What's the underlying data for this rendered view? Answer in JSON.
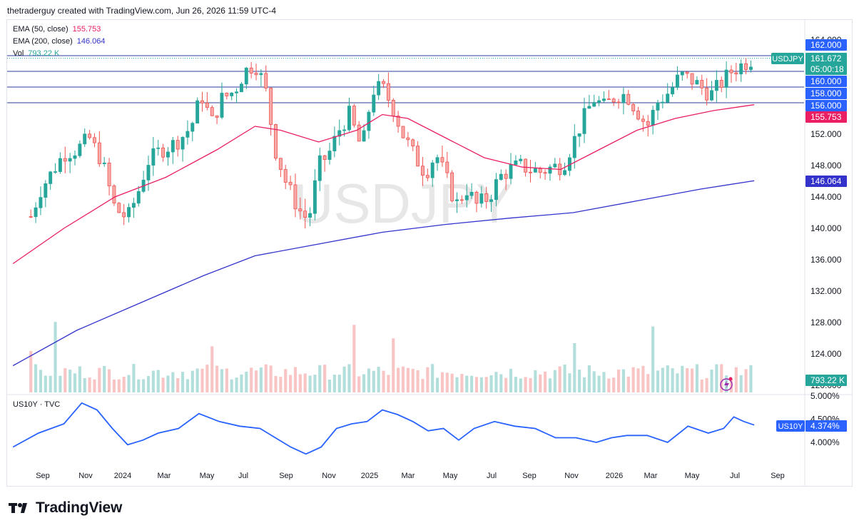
{
  "header": {
    "caption": "thetraderguy created with TradingView.com, Jun 26, 2026 11:59 UTC-4"
  },
  "legend": {
    "ema50": {
      "label": "EMA (50, close)",
      "value": "155.753",
      "color": "#e91e63"
    },
    "ema200": {
      "label": "EMA (200, close)",
      "value": "146.064",
      "color": "#3333cc"
    },
    "vol": {
      "label": "Vol",
      "value": "793.22 K",
      "color": "#26a69a"
    }
  },
  "watermark": "USDJPY",
  "colors": {
    "up": "#26a69a",
    "down": "#ef5350",
    "up_vol": "#b2dfdb",
    "down_vol": "#f8c4c4",
    "ema50": "#e91e63",
    "ema200": "#3333cc",
    "us10y": "#2962ff",
    "hline": "#2a3f9e"
  },
  "price_axis": {
    "ticks": [
      "164.000",
      "152.000",
      "148.000",
      "144.000",
      "140.000",
      "136.000",
      "132.000",
      "128.000",
      "124.000",
      "120.000"
    ]
  },
  "price_labels": [
    {
      "text": "162.000",
      "bg": "#2962ff",
      "fg": "#ffffff"
    },
    {
      "text": "161.672",
      "bg": "#26a69a",
      "fg": "#ffffff"
    },
    {
      "text": "05:00:18",
      "bg": "#26a69a",
      "fg": "#ffffff"
    },
    {
      "text": "160.000",
      "bg": "#2962ff",
      "fg": "#ffffff"
    },
    {
      "text": "158.000",
      "bg": "#2962ff",
      "fg": "#ffffff"
    },
    {
      "text": "156.000",
      "bg": "#2962ff",
      "fg": "#ffffff"
    },
    {
      "text": "155.753",
      "bg": "#e91e63",
      "fg": "#ffffff"
    },
    {
      "text": "146.064",
      "bg": "#3333cc",
      "fg": "#ffffff"
    }
  ],
  "symbol_tag": "USDJPY",
  "vol_label": "793.22 K",
  "sub_pane": {
    "title": "US10Y · TVC",
    "axis": [
      "5.000%",
      "4.500%",
      "4.000%"
    ],
    "tag_name": "US10Y",
    "tag_value": "4.374%"
  },
  "time_axis": [
    "Sep",
    "Nov",
    "2024",
    "Mar",
    "May",
    "Jul",
    "Sep",
    "Nov",
    "2025",
    "Mar",
    "May",
    "Jul",
    "Sep",
    "Nov",
    "2026",
    "Mar",
    "May",
    "Jul",
    "Sep"
  ],
  "footer": {
    "brand": "TradingView"
  },
  "chart_data": {
    "type": "candlestick",
    "symbol": "USDJPY",
    "interval": "weekly",
    "x_range": [
      "2023-07",
      "2026-09"
    ],
    "ylim": [
      120,
      165
    ],
    "horizontal_levels": [
      162,
      160,
      158,
      156
    ],
    "last_price": 161.672,
    "ema50_last": 155.753,
    "ema200_last": 146.064,
    "volume_last": "793.22K",
    "close_path": [
      [
        2023.62,
        141.5
      ],
      [
        2023.66,
        145
      ],
      [
        2023.7,
        147
      ],
      [
        2023.75,
        149.5
      ],
      [
        2023.8,
        150
      ],
      [
        2023.85,
        151.5
      ],
      [
        2023.9,
        148.5
      ],
      [
        2023.95,
        142.5
      ],
      [
        2024.0,
        141.3
      ],
      [
        2024.04,
        144.5
      ],
      [
        2024.08,
        148.5
      ],
      [
        2024.13,
        150
      ],
      [
        2024.17,
        150.5
      ],
      [
        2024.21,
        151.5
      ],
      [
        2024.25,
        153
      ],
      [
        2024.29,
        157
      ],
      [
        2024.33,
        153.5
      ],
      [
        2024.37,
        156.5
      ],
      [
        2024.42,
        157.5
      ],
      [
        2024.46,
        160
      ],
      [
        2024.5,
        161
      ],
      [
        2024.54,
        158
      ],
      [
        2024.58,
        150
      ],
      [
        2024.62,
        146
      ],
      [
        2024.67,
        142.5
      ],
      [
        2024.71,
        141
      ],
      [
        2024.75,
        148
      ],
      [
        2024.79,
        149.5
      ],
      [
        2024.83,
        152.5
      ],
      [
        2024.87,
        154.5
      ],
      [
        2024.92,
        150
      ],
      [
        2024.96,
        157.5
      ],
      [
        2025.0,
        158
      ],
      [
        2025.04,
        155.5
      ],
      [
        2025.08,
        152
      ],
      [
        2025.13,
        149
      ],
      [
        2025.17,
        147
      ],
      [
        2025.21,
        149.5
      ],
      [
        2025.25,
        146.5
      ],
      [
        2025.29,
        143
      ],
      [
        2025.33,
        145
      ],
      [
        2025.37,
        143
      ],
      [
        2025.42,
        144
      ],
      [
        2025.46,
        146.5
      ],
      [
        2025.5,
        147.5
      ],
      [
        2025.54,
        148
      ],
      [
        2025.58,
        147.5
      ],
      [
        2025.62,
        147.2
      ],
      [
        2025.67,
        147.8
      ],
      [
        2025.71,
        148
      ],
      [
        2025.75,
        151
      ],
      [
        2025.79,
        154
      ],
      [
        2025.83,
        156.5
      ],
      [
        2025.87,
        155.5
      ],
      [
        2025.92,
        157
      ],
      [
        2025.96,
        157
      ],
      [
        2026.0,
        155
      ],
      [
        2026.04,
        153
      ],
      [
        2026.08,
        156
      ],
      [
        2026.13,
        157.5
      ],
      [
        2026.17,
        159.5
      ],
      [
        2026.21,
        159
      ],
      [
        2026.25,
        158
      ],
      [
        2026.29,
        157
      ],
      [
        2026.33,
        158.5
      ],
      [
        2026.37,
        160
      ],
      [
        2026.42,
        161
      ],
      [
        2026.46,
        161.672
      ]
    ],
    "ema50_path": [
      [
        2023.55,
        135.5
      ],
      [
        2023.75,
        140
      ],
      [
        2023.95,
        144
      ],
      [
        2024.15,
        146.5
      ],
      [
        2024.35,
        150
      ],
      [
        2024.5,
        153
      ],
      [
        2024.6,
        152.5
      ],
      [
        2024.75,
        151
      ],
      [
        2024.9,
        152.5
      ],
      [
        2025.0,
        154.5
      ],
      [
        2025.1,
        154
      ],
      [
        2025.25,
        151.5
      ],
      [
        2025.4,
        149
      ],
      [
        2025.55,
        147.8
      ],
      [
        2025.7,
        147.5
      ],
      [
        2025.85,
        150
      ],
      [
        2026.0,
        152.5
      ],
      [
        2026.15,
        154
      ],
      [
        2026.3,
        155
      ],
      [
        2026.46,
        155.753
      ]
    ],
    "ema200_path": [
      [
        2023.55,
        122.5
      ],
      [
        2023.8,
        127
      ],
      [
        2024.05,
        130.5
      ],
      [
        2024.3,
        134
      ],
      [
        2024.5,
        136.5
      ],
      [
        2024.75,
        138
      ],
      [
        2025.0,
        139.5
      ],
      [
        2025.25,
        140.5
      ],
      [
        2025.5,
        141.3
      ],
      [
        2025.75,
        142
      ],
      [
        2026.0,
        143.5
      ],
      [
        2026.25,
        145
      ],
      [
        2026.46,
        146.064
      ]
    ],
    "us10y_path": [
      [
        2023.55,
        3.9
      ],
      [
        2023.65,
        4.2
      ],
      [
        2023.75,
        4.4
      ],
      [
        2023.82,
        4.85
      ],
      [
        2023.88,
        4.7
      ],
      [
        2023.94,
        4.3
      ],
      [
        2024.0,
        3.95
      ],
      [
        2024.06,
        4.05
      ],
      [
        2024.12,
        4.2
      ],
      [
        2024.2,
        4.3
      ],
      [
        2024.28,
        4.62
      ],
      [
        2024.36,
        4.45
      ],
      [
        2024.44,
        4.35
      ],
      [
        2024.52,
        4.3
      ],
      [
        2024.58,
        4.1
      ],
      [
        2024.64,
        3.9
      ],
      [
        2024.7,
        3.75
      ],
      [
        2024.76,
        3.9
      ],
      [
        2024.82,
        4.3
      ],
      [
        2024.88,
        4.4
      ],
      [
        2024.94,
        4.45
      ],
      [
        2025.0,
        4.7
      ],
      [
        2025.06,
        4.6
      ],
      [
        2025.12,
        4.45
      ],
      [
        2025.18,
        4.25
      ],
      [
        2025.24,
        4.3
      ],
      [
        2025.3,
        4.05
      ],
      [
        2025.36,
        4.3
      ],
      [
        2025.44,
        4.45
      ],
      [
        2025.52,
        4.35
      ],
      [
        2025.6,
        4.3
      ],
      [
        2025.68,
        4.1
      ],
      [
        2025.76,
        4.1
      ],
      [
        2025.84,
        4.0
      ],
      [
        2025.9,
        4.1
      ],
      [
        2025.96,
        4.15
      ],
      [
        2026.04,
        4.15
      ],
      [
        2026.12,
        4.0
      ],
      [
        2026.2,
        4.35
      ],
      [
        2026.28,
        4.2
      ],
      [
        2026.34,
        4.3
      ],
      [
        2026.38,
        4.55
      ],
      [
        2026.42,
        4.45
      ],
      [
        2026.46,
        4.374
      ]
    ]
  }
}
